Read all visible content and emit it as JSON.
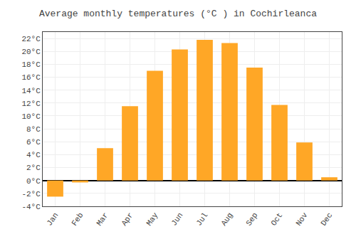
{
  "chart_data": {
    "type": "bar",
    "title": "Average monthly temperatures (°C ) in Cochirleanca",
    "categories": [
      "Jan",
      "Feb",
      "Mar",
      "Apr",
      "May",
      "Jun",
      "Jul",
      "Aug",
      "Sep",
      "Oct",
      "Nov",
      "Dec"
    ],
    "values": [
      -2.5,
      -0.3,
      5.0,
      11.5,
      17.0,
      20.3,
      21.8,
      21.3,
      17.5,
      11.7,
      5.9,
      0.5
    ],
    "color": "#FFA726",
    "ylim": [
      -4,
      23
    ],
    "yticks": [
      {
        "value": -4,
        "label": "-4°C"
      },
      {
        "value": -2,
        "label": "-2°C"
      },
      {
        "value": 0,
        "label": "0°C"
      },
      {
        "value": 2,
        "label": "2°C"
      },
      {
        "value": 4,
        "label": "4°C"
      },
      {
        "value": 6,
        "label": "6°C"
      },
      {
        "value": 8,
        "label": "8°C"
      },
      {
        "value": 10,
        "label": "10°C"
      },
      {
        "value": 12,
        "label": "12°C"
      },
      {
        "value": 14,
        "label": "14°C"
      },
      {
        "value": 16,
        "label": "16°C"
      },
      {
        "value": 18,
        "label": "18°C"
      },
      {
        "value": 20,
        "label": "20°C"
      },
      {
        "value": 22,
        "label": "22°C"
      }
    ],
    "grid": true
  }
}
